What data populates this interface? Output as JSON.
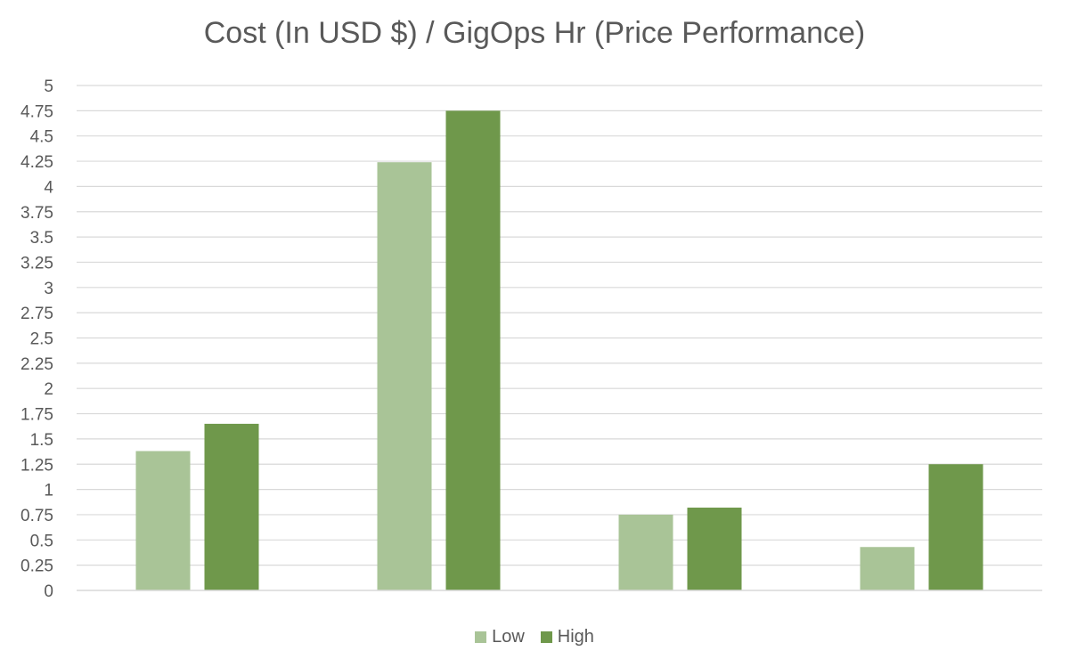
{
  "chart_data": {
    "type": "bar",
    "title": "Cost (In USD $) / GigOps Hr (Price Performance)",
    "categories": [
      "",
      "",
      "",
      ""
    ],
    "series": [
      {
        "name": "Low",
        "color": "#a9c497",
        "values": [
          1.38,
          4.24,
          0.75,
          0.43
        ]
      },
      {
        "name": "High",
        "color": "#6f984b",
        "values": [
          1.65,
          4.75,
          0.82,
          1.25
        ]
      }
    ],
    "ylim": [
      0,
      5
    ],
    "yticks": [
      "0",
      "0.25",
      "0.5",
      "0.75",
      "1",
      "1.25",
      "1.5",
      "1.75",
      "2",
      "2.25",
      "2.5",
      "2.75",
      "3",
      "3.25",
      "3.5",
      "3.75",
      "4",
      "4.25",
      "4.5",
      "4.75",
      "5"
    ],
    "grid": true,
    "legend_position": "bottom"
  }
}
